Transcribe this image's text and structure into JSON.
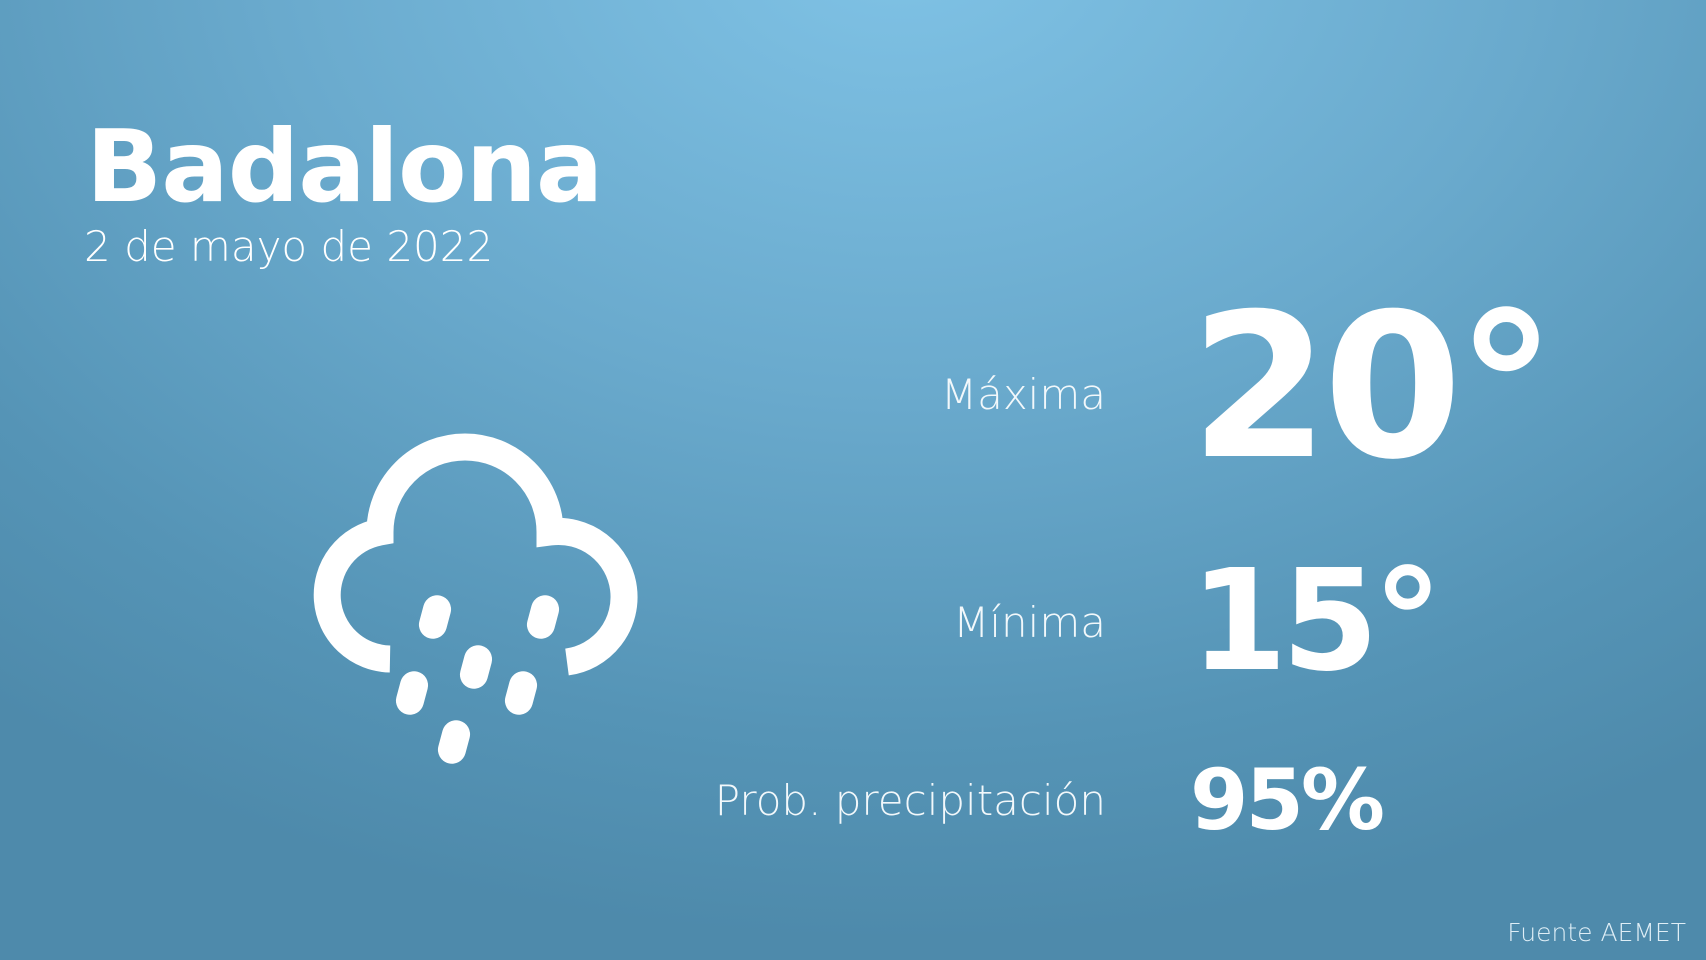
{
  "city": "Badalona",
  "date": "2 de mayo de 2022",
  "weather_icon": "rain-cloud-icon",
  "forecast": {
    "max_label": "Máxima",
    "max_value": "20°",
    "min_label": "Mínima",
    "min_value": "15°",
    "precip_label": "Prob. precipitación",
    "precip_value": "95%"
  },
  "source": "Fuente AEMET",
  "colors": {
    "background_top": "#80c3e6",
    "background_bottom": "#4e8aab",
    "text": "#ffffff"
  }
}
